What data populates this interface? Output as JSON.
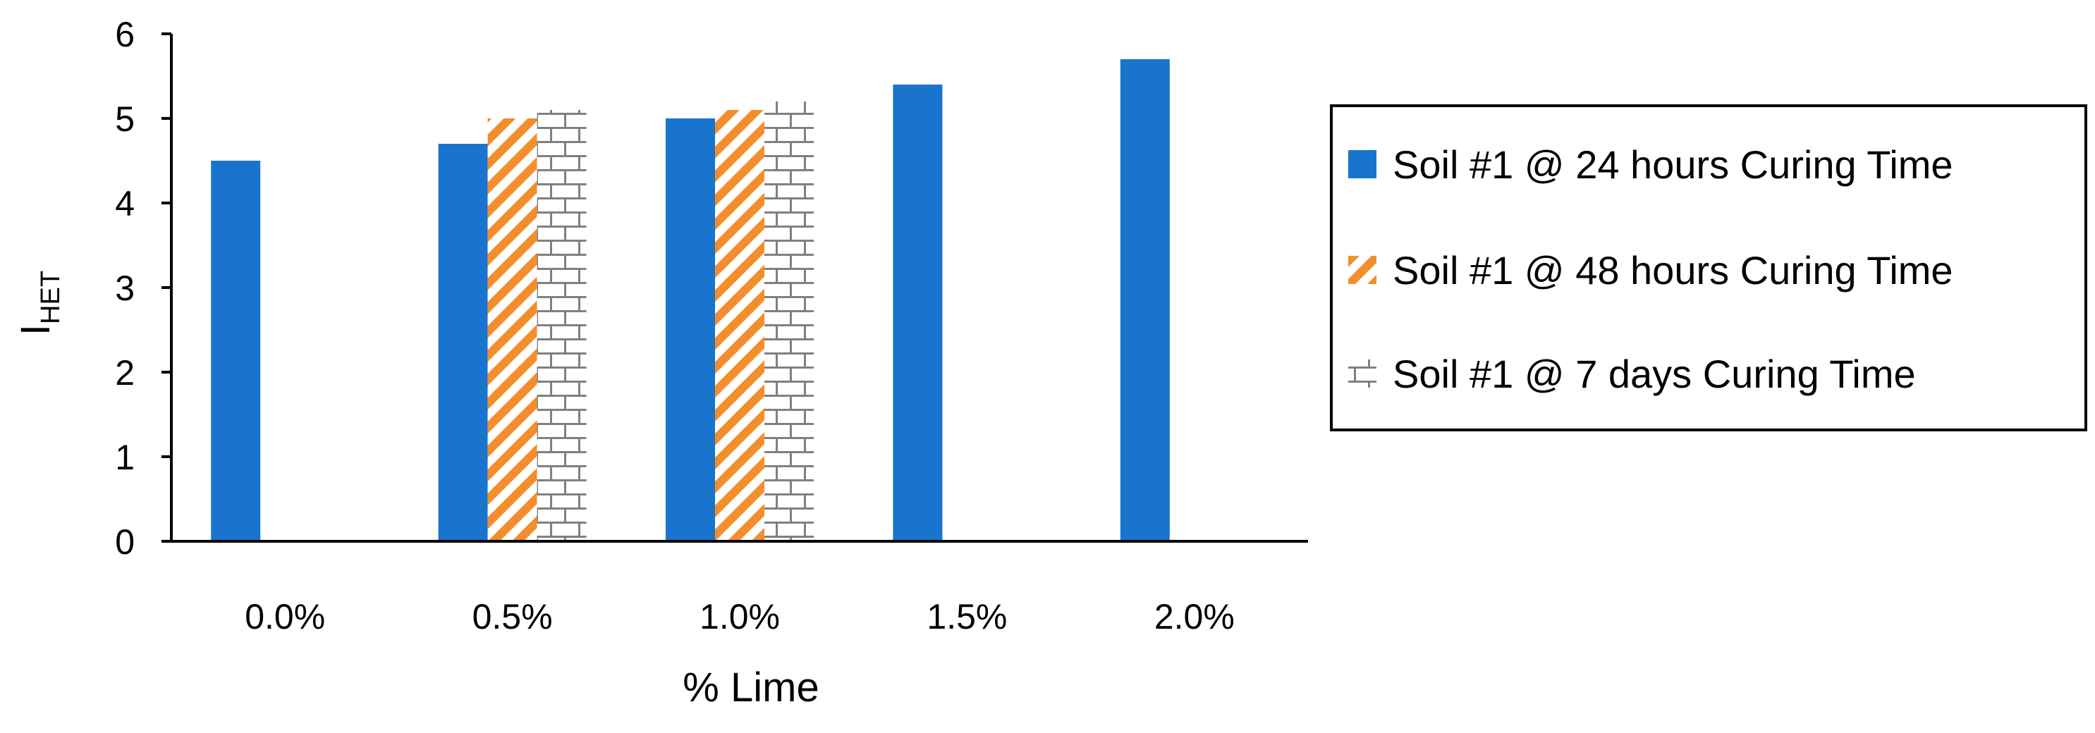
{
  "chart_data": {
    "type": "bar",
    "title": "",
    "xlabel": "% Lime",
    "ylabel": {
      "main": "I",
      "sub": "HET"
    },
    "categories": [
      "0.0%",
      "0.5%",
      "1.0%",
      "1.5%",
      "2.0%"
    ],
    "ylim": [
      0,
      6
    ],
    "yticks": [
      0,
      1,
      2,
      3,
      4,
      5,
      6
    ],
    "grid": false,
    "legend_position": "right",
    "series": [
      {
        "name": "Soil #1 @ 24 hours Curing Time",
        "values": [
          4.5,
          4.7,
          5.0,
          5.4,
          5.7
        ],
        "color": "#1874CD",
        "pattern": "solid"
      },
      {
        "name": "Soil #1 @ 48 hours Curing Time",
        "values": [
          null,
          5.0,
          5.1,
          null,
          null
        ],
        "color": "#F28E2B",
        "pattern": "diagonal-stripes"
      },
      {
        "name": "Soil #1 @ 7 days Curing Time",
        "values": [
          null,
          5.1,
          5.2,
          null,
          null
        ],
        "color": "#808080",
        "pattern": "brick"
      }
    ]
  }
}
